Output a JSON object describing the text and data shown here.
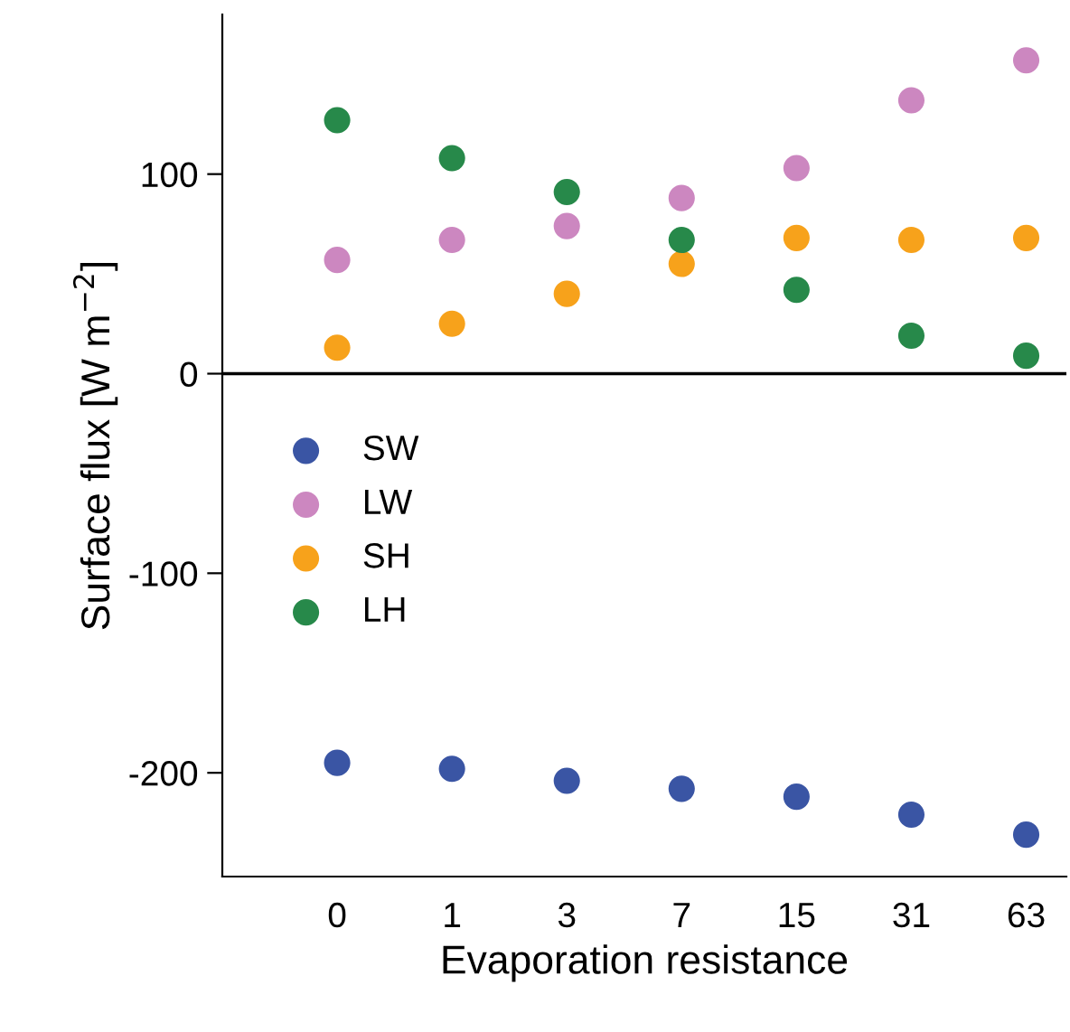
{
  "chart_data": {
    "type": "scatter",
    "xlabel": "Evaporation resistance",
    "ylabel": "Surface flux [W m$^{−2}$]",
    "categories": [
      "0",
      "1",
      "3",
      "7",
      "15",
      "31",
      "63"
    ],
    "series": [
      {
        "name": "SW",
        "color": "#3a55a4",
        "values": [
          -195,
          -198,
          -204,
          -208,
          -212,
          -221,
          -231
        ]
      },
      {
        "name": "LW",
        "color": "#cc87c0",
        "values": [
          57,
          67,
          74,
          88,
          103,
          137,
          157
        ]
      },
      {
        "name": "SH",
        "color": "#f7a21b",
        "values": [
          13,
          25,
          40,
          55,
          68,
          67,
          68
        ]
      },
      {
        "name": "LH",
        "color": "#27894a",
        "values": [
          127,
          108,
          91,
          67,
          42,
          19,
          9
        ]
      }
    ],
    "ylim": [
      -252,
      180
    ],
    "yticks": [
      -200,
      -100,
      0,
      100
    ],
    "ref_lines": [
      {
        "axis": "y",
        "value": 0,
        "color": "#000000"
      }
    ],
    "legend": "left",
    "marker": "circle",
    "grid": false
  }
}
